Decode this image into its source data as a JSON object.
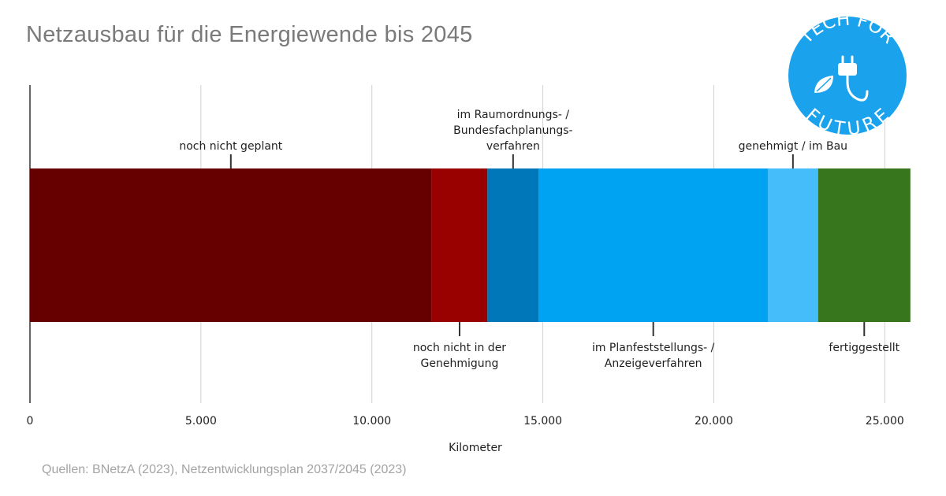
{
  "title": "Netzausbau für die Energiewende bis 2045",
  "source": "Quellen: BNetzA (2023), Netzentwicklungsplan 2037/2045 (2023)",
  "logo": {
    "text_top": "TECH FOR",
    "text_bottom": "FUTURE",
    "color": "#1aa3ec"
  },
  "chart_data": {
    "type": "bar",
    "orientation": "horizontal",
    "stacked": true,
    "xlabel": "Kilometer",
    "xlim": [
      0,
      25800
    ],
    "xticks": [
      0,
      5000,
      10000,
      15000,
      20000,
      25000
    ],
    "xtick_labels": [
      "0",
      "5.000",
      "10.000",
      "15.000",
      "20.000",
      "25.000"
    ],
    "grid": true,
    "segments": [
      {
        "label_lines": [
          "noch nicht geplant"
        ],
        "value": 11750,
        "color": "#660000",
        "label_pos": "top"
      },
      {
        "label_lines": [
          "noch nicht in der",
          "Genehmigung"
        ],
        "value": 1630,
        "color": "#990000",
        "label_pos": "bottom"
      },
      {
        "label_lines": [
          "im Raumordnungs- /",
          "Bundesfachplanungs-",
          "verfahren"
        ],
        "value": 1500,
        "color": "#0077b8",
        "label_pos": "top"
      },
      {
        "label_lines": [
          "im Planfeststellungs- /",
          "Anzeigeverfahren"
        ],
        "value": 6700,
        "color": "#00a2f2",
        "label_pos": "bottom"
      },
      {
        "label_lines": [
          "genehmigt / im Bau"
        ],
        "value": 1470,
        "color": "#44bdfa",
        "label_pos": "top"
      },
      {
        "label_lines": [
          "fertiggestellt"
        ],
        "value": 2700,
        "color": "#38761d",
        "label_pos": "bottom"
      }
    ]
  }
}
